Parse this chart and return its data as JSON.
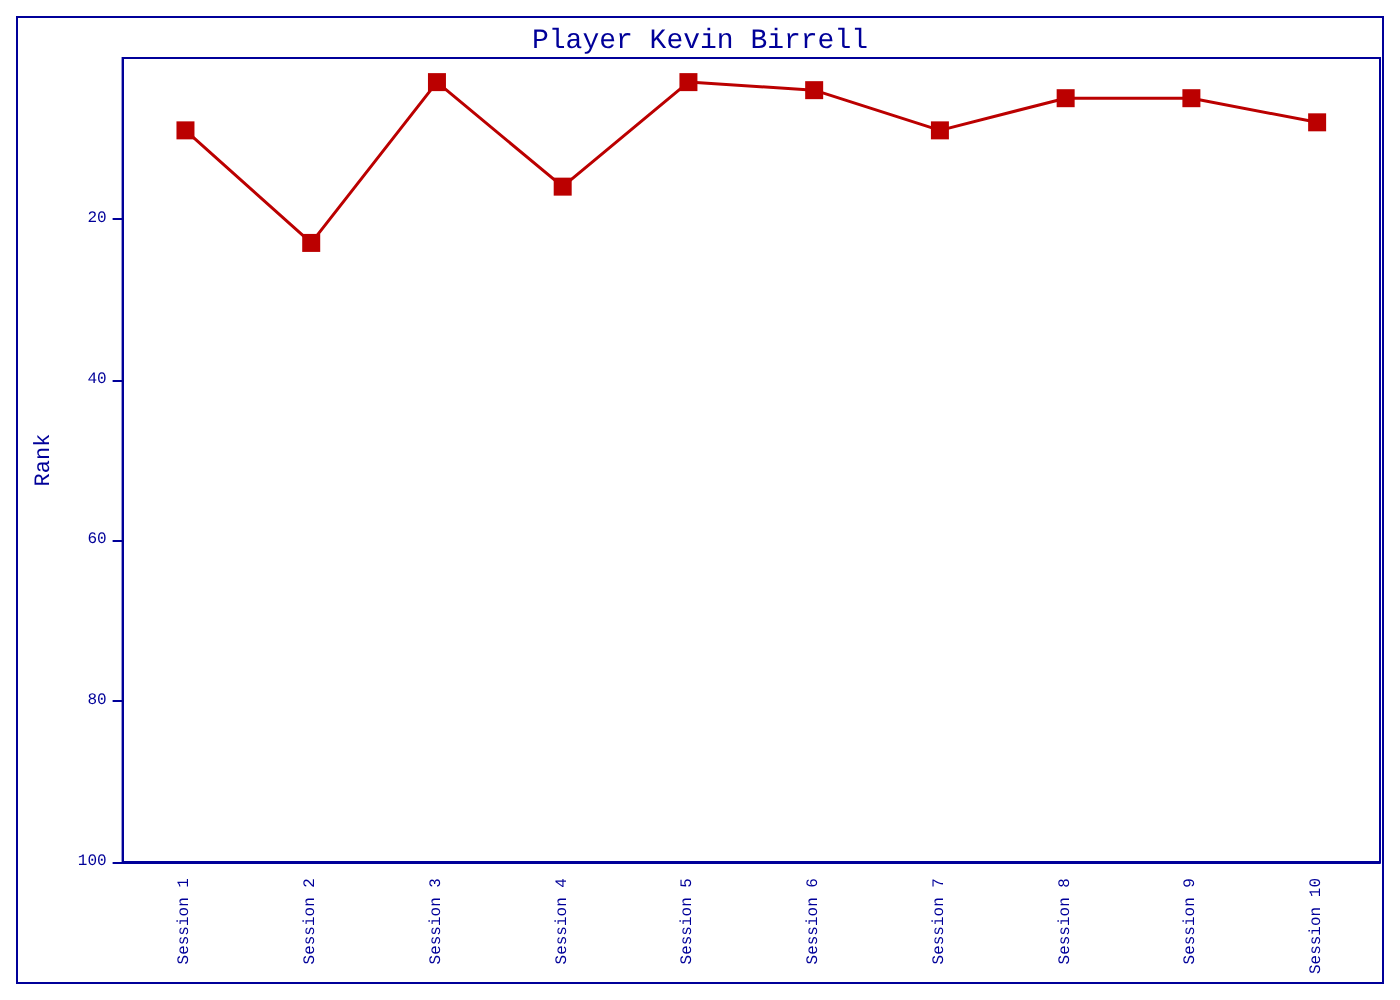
{
  "chart_data": {
    "type": "line",
    "title": "Player Kevin Birrell",
    "ylabel": "Rank",
    "categories": [
      "Session 1",
      "Session 2",
      "Session 3",
      "Session 4",
      "Session 5",
      "Session 6",
      "Session 7",
      "Session 8",
      "Session 9",
      "Session 10"
    ],
    "series": [
      {
        "color": "#bb0000",
        "values": [
          9,
          23,
          3,
          16,
          3,
          4,
          9,
          5,
          5,
          8
        ]
      }
    ],
    "ylim": [
      100,
      0
    ],
    "yticks": [
      20,
      40,
      60,
      80,
      100
    ],
    "marker": "square",
    "line_style": "solid"
  }
}
